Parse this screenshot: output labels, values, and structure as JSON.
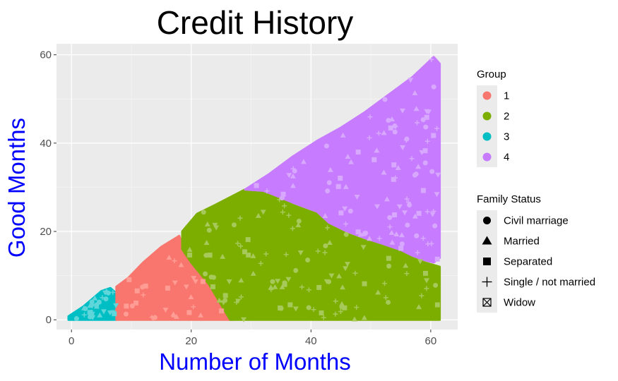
{
  "chart_data": {
    "type": "scatter",
    "title": "Credit History",
    "xlabel": "Number of Months",
    "ylabel": "Good Months",
    "xlim": [
      -2.5,
      64.5
    ],
    "ylim": [
      -2.2,
      62.5
    ],
    "x_ticks": [
      "0",
      "20",
      "40",
      "60"
    ],
    "y_ticks": [
      "0",
      "20",
      "40",
      "60"
    ],
    "grid": true,
    "axis_title_color": "#0000ff",
    "panel_color": "#ebebeb",
    "legend_placement": "right",
    "legends": [
      {
        "title": "Group",
        "kind": "color",
        "entries": [
          {
            "label": "1",
            "color": "#f8766d"
          },
          {
            "label": "2",
            "color": "#7cae00"
          },
          {
            "label": "3",
            "color": "#00bfc4"
          },
          {
            "label": "4",
            "color": "#c77cff"
          }
        ]
      },
      {
        "title": "Family Status",
        "kind": "shape",
        "entries": [
          {
            "label": "Civil marriage",
            "shape": "circle"
          },
          {
            "label": "Married",
            "shape": "triangle"
          },
          {
            "label": "Separated",
            "shape": "square"
          },
          {
            "label": "Single / not married",
            "shape": "plus"
          },
          {
            "label": "Widow",
            "shape": "boxed-x"
          }
        ]
      }
    ],
    "series": [
      {
        "name": "3",
        "color": "#00bfc4",
        "region": [
          [
            -0.5,
            0
          ],
          [
            7.5,
            0
          ],
          [
            7.5,
            6
          ],
          [
            6.5,
            7.2
          ],
          [
            5,
            6.5
          ],
          [
            2,
            3
          ],
          [
            -0.5,
            0.8
          ]
        ]
      },
      {
        "name": "1",
        "color": "#f8766d",
        "region": [
          [
            7.5,
            0
          ],
          [
            27,
            0
          ],
          [
            26,
            2
          ],
          [
            23,
            8
          ],
          [
            20,
            14
          ],
          [
            18.5,
            17
          ],
          [
            18,
            19
          ],
          [
            15,
            16.5
          ],
          [
            12,
            13
          ],
          [
            9.5,
            9.5
          ],
          [
            7.5,
            7.5
          ]
        ]
      },
      {
        "name": "2",
        "color": "#7cae00",
        "region": [
          [
            26.5,
            0
          ],
          [
            61.5,
            0
          ],
          [
            61.5,
            12
          ],
          [
            59,
            13
          ],
          [
            57,
            14
          ],
          [
            55,
            15.5
          ],
          [
            52,
            17
          ],
          [
            49,
            18
          ],
          [
            46,
            19.5
          ],
          [
            43,
            21.5
          ],
          [
            41,
            24
          ],
          [
            37,
            26
          ],
          [
            34,
            28
          ],
          [
            32,
            29
          ],
          [
            29,
            29.5
          ],
          [
            24,
            26
          ],
          [
            21,
            24
          ],
          [
            18.5,
            20
          ],
          [
            18.5,
            16
          ],
          [
            20,
            13
          ],
          [
            23,
            8
          ]
        ]
      },
      {
        "name": "4",
        "color": "#c77cff",
        "region": [
          [
            29,
            29.5
          ],
          [
            33,
            33
          ],
          [
            37,
            37
          ],
          [
            41,
            40.5
          ],
          [
            45,
            43.5
          ],
          [
            49,
            47
          ],
          [
            53,
            51
          ],
          [
            57,
            55
          ],
          [
            60.5,
            59.5
          ],
          [
            61.5,
            58
          ],
          [
            61.5,
            14
          ],
          [
            60.5,
            13
          ],
          [
            59,
            13.5
          ],
          [
            57,
            14.5
          ],
          [
            55,
            15.8
          ],
          [
            52,
            17.2
          ],
          [
            49,
            18.5
          ],
          [
            46,
            20
          ],
          [
            43,
            22
          ],
          [
            41,
            24.5
          ],
          [
            37,
            26.5
          ],
          [
            34,
            28.2
          ],
          [
            32,
            29.2
          ]
        ]
      }
    ]
  }
}
